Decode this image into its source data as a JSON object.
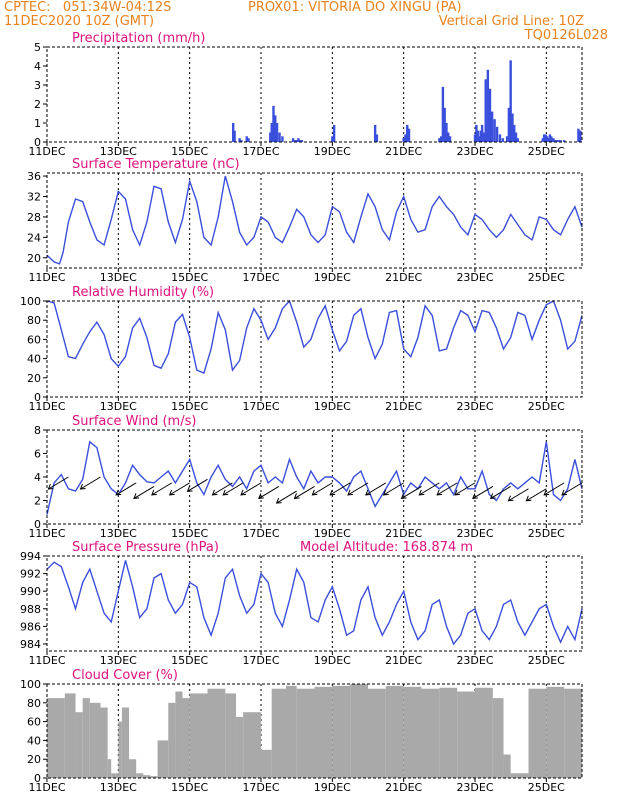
{
  "header": {
    "line1_left": "CPTEC:   051:34W-04:12S",
    "line1_mid": "PROX01: VITORIA DO XINGU (PA)",
    "line2_left": "11DEC2020 10Z (GMT)",
    "line2_right": "Vertical Grid Line: 10Z",
    "line3_right": "TQ0126L028"
  },
  "colors": {
    "header": "#e8821c",
    "title": "#e0107c",
    "line": "#3a4fdc",
    "cloud": "#a9a9a9",
    "wind": "#000000"
  },
  "x_ticks": [
    "11DEC",
    "13DEC",
    "15DEC",
    "17DEC",
    "19DEC",
    "21DEC",
    "23DEC",
    "25DEC"
  ],
  "x_tick_days": [
    0,
    2,
    4,
    6,
    8,
    10,
    12,
    14
  ],
  "x_range_days": [
    0,
    15.0
  ],
  "chart_data": [
    {
      "type": "bar",
      "title": "Precipitation (mm/h)",
      "ylim": [
        0,
        5
      ],
      "yticks": [
        0,
        1,
        2,
        3,
        4,
        5
      ],
      "x_days": [
        5.22,
        5.26,
        5.4,
        5.45,
        5.6,
        5.65,
        6.26,
        6.3,
        6.35,
        6.4,
        6.45,
        6.52,
        6.6,
        6.9,
        6.95,
        7.0,
        7.05,
        7.1,
        7.15,
        8.0,
        8.05,
        9.2,
        9.25,
        10.0,
        10.05,
        10.1,
        10.15,
        11.0,
        11.05,
        11.1,
        11.15,
        11.2,
        11.25,
        11.3,
        12.0,
        12.04,
        12.08,
        12.12,
        12.16,
        12.2,
        12.24,
        12.3,
        12.36,
        12.42,
        12.48,
        12.55,
        12.62,
        12.7,
        12.78,
        12.9,
        12.95,
        13.0,
        13.05,
        13.1,
        13.15,
        13.2,
        13.9,
        13.94,
        13.98,
        14.02,
        14.06,
        14.1,
        14.14,
        14.2,
        14.25,
        14.3,
        14.35,
        14.4,
        14.5,
        14.9,
        14.95
      ],
      "values": [
        1.0,
        0.6,
        0.2,
        0.1,
        0.3,
        0.2,
        0.5,
        1.0,
        1.9,
        1.4,
        1.0,
        0.5,
        0.3,
        0.2,
        0.1,
        0.1,
        0.2,
        0.1,
        0.1,
        0.3,
        0.9,
        0.9,
        0.4,
        0.2,
        0.4,
        0.9,
        0.7,
        0.2,
        0.3,
        2.9,
        1.8,
        1.0,
        0.5,
        0.3,
        0.4,
        0.9,
        0.6,
        0.3,
        0.6,
        0.9,
        0.5,
        3.3,
        3.8,
        2.8,
        1.6,
        1.2,
        0.8,
        0.4,
        0.2,
        0.3,
        1.8,
        4.3,
        1.5,
        0.9,
        0.5,
        0.2,
        0.2,
        0.4,
        0.4,
        0.3,
        0.2,
        0.4,
        0.3,
        0.2,
        0.1,
        0.1,
        0.1,
        0.1,
        0.1,
        0.7,
        0.6
      ]
    },
    {
      "type": "line",
      "title": "Surface Temperature (nC)",
      "ylim": [
        18,
        36.6
      ],
      "yticks": [
        20,
        24,
        28,
        32,
        36
      ],
      "x_days": [
        0.0,
        0.2,
        0.35,
        0.45,
        0.6,
        0.8,
        1.0,
        1.2,
        1.4,
        1.6,
        1.8,
        2.0,
        2.2,
        2.4,
        2.6,
        2.8,
        3.0,
        3.2,
        3.4,
        3.6,
        3.8,
        4.0,
        4.2,
        4.4,
        4.6,
        4.8,
        5.0,
        5.2,
        5.4,
        5.6,
        5.8,
        6.0,
        6.2,
        6.4,
        6.6,
        6.8,
        7.0,
        7.2,
        7.4,
        7.6,
        7.8,
        8.0,
        8.2,
        8.4,
        8.6,
        8.8,
        9.0,
        9.2,
        9.4,
        9.6,
        9.8,
        10.0,
        10.2,
        10.4,
        10.6,
        10.8,
        11.0,
        11.2,
        11.4,
        11.6,
        11.8,
        12.0,
        12.2,
        12.4,
        12.6,
        12.8,
        13.0,
        13.2,
        13.4,
        13.6,
        13.8,
        14.0,
        14.2,
        14.4,
        14.6,
        14.8,
        15.0
      ],
      "values": [
        20.5,
        19.2,
        18.8,
        21.0,
        27.0,
        31.5,
        31.0,
        27.0,
        23.5,
        22.5,
        27.5,
        33.0,
        31.5,
        25.5,
        22.5,
        27.0,
        34.0,
        33.5,
        27.0,
        23.0,
        27.5,
        35.0,
        31.0,
        24.0,
        22.5,
        28.0,
        36.0,
        31.0,
        25.0,
        22.5,
        24.0,
        28.0,
        27.0,
        24.0,
        23.0,
        26.0,
        29.5,
        28.0,
        24.5,
        23.0,
        24.5,
        30.0,
        29.0,
        25.0,
        23.0,
        28.0,
        32.5,
        30.0,
        25.5,
        23.5,
        29.0,
        32.0,
        27.5,
        25.0,
        25.5,
        30.0,
        32.0,
        30.0,
        28.5,
        26.0,
        24.5,
        28.5,
        27.5,
        25.5,
        24.0,
        25.5,
        28.5,
        26.5,
        24.5,
        23.5,
        28.0,
        27.5,
        25.5,
        24.5,
        27.5,
        30.0,
        26.0
      ]
    },
    {
      "type": "line",
      "title": "Relative Humidity (%)",
      "ylim": [
        0,
        100
      ],
      "yticks": [
        0,
        20,
        40,
        60,
        80,
        100
      ],
      "x_days": [
        0.0,
        0.2,
        0.4,
        0.6,
        0.8,
        1.0,
        1.2,
        1.4,
        1.6,
        1.8,
        2.0,
        2.2,
        2.4,
        2.6,
        2.8,
        3.0,
        3.2,
        3.4,
        3.6,
        3.8,
        4.0,
        4.2,
        4.4,
        4.6,
        4.8,
        5.0,
        5.2,
        5.4,
        5.6,
        5.8,
        6.0,
        6.2,
        6.4,
        6.6,
        6.8,
        7.0,
        7.2,
        7.4,
        7.6,
        7.8,
        8.0,
        8.2,
        8.4,
        8.6,
        8.8,
        9.0,
        9.2,
        9.4,
        9.6,
        9.8,
        10.0,
        10.2,
        10.4,
        10.6,
        10.8,
        11.0,
        11.2,
        11.4,
        11.6,
        11.8,
        12.0,
        12.2,
        12.4,
        12.6,
        12.8,
        13.0,
        13.2,
        13.4,
        13.6,
        13.8,
        14.0,
        14.2,
        14.4,
        14.6,
        14.8,
        15.0
      ],
      "values": [
        100,
        98,
        70,
        42,
        40,
        55,
        68,
        78,
        65,
        40,
        32,
        42,
        72,
        82,
        62,
        33,
        30,
        45,
        78,
        86,
        62,
        28,
        25,
        50,
        88,
        70,
        28,
        38,
        72,
        92,
        80,
        60,
        72,
        92,
        100,
        78,
        52,
        60,
        82,
        95,
        70,
        48,
        58,
        85,
        92,
        62,
        40,
        55,
        88,
        90,
        50,
        42,
        62,
        95,
        85,
        48,
        50,
        72,
        90,
        85,
        68,
        90,
        88,
        72,
        50,
        62,
        88,
        85,
        60,
        80,
        96,
        100,
        80,
        50,
        58,
        85
      ]
    },
    {
      "type": "line",
      "title": "Surface Wind (m/s)",
      "ylim": [
        0,
        8
      ],
      "yticks": [
        0,
        2,
        4,
        6,
        8
      ],
      "x_days": [
        0.0,
        0.2,
        0.4,
        0.6,
        0.8,
        1.0,
        1.2,
        1.4,
        1.6,
        1.8,
        2.0,
        2.2,
        2.4,
        2.6,
        2.8,
        3.0,
        3.2,
        3.4,
        3.6,
        3.8,
        4.0,
        4.2,
        4.4,
        4.6,
        4.8,
        5.0,
        5.2,
        5.4,
        5.6,
        5.8,
        6.0,
        6.2,
        6.4,
        6.6,
        6.8,
        7.0,
        7.2,
        7.4,
        7.6,
        7.8,
        8.0,
        8.2,
        8.4,
        8.6,
        8.8,
        9.0,
        9.2,
        9.4,
        9.6,
        9.8,
        10.0,
        10.2,
        10.4,
        10.6,
        10.8,
        11.0,
        11.2,
        11.4,
        11.6,
        11.8,
        12.0,
        12.2,
        12.4,
        12.6,
        12.8,
        13.0,
        13.2,
        13.4,
        13.6,
        13.8,
        14.0,
        14.2,
        14.4,
        14.6,
        14.8,
        15.0
      ],
      "values": [
        0.8,
        3.5,
        4.2,
        3.0,
        2.8,
        3.8,
        7.0,
        6.5,
        4.0,
        3.0,
        2.5,
        3.5,
        5.0,
        4.2,
        3.6,
        3.5,
        4.0,
        4.5,
        3.5,
        4.5,
        5.5,
        3.5,
        2.5,
        4.0,
        5.0,
        3.8,
        3.2,
        4.0,
        3.0,
        4.5,
        5.0,
        3.5,
        4.0,
        3.5,
        5.5,
        4.0,
        3.0,
        4.5,
        3.5,
        4.0,
        4.0,
        3.5,
        2.8,
        4.0,
        4.5,
        3.0,
        1.5,
        2.5,
        3.5,
        4.5,
        2.5,
        3.5,
        3.0,
        4.0,
        3.5,
        3.0,
        3.5,
        2.5,
        4.0,
        3.0,
        3.0,
        4.5,
        2.5,
        2.0,
        3.0,
        3.5,
        3.0,
        3.5,
        4.0,
        3.5,
        7.0,
        2.5,
        2.0,
        3.0,
        5.5,
        3.0
      ],
      "arrows_x_days": [
        0.6,
        1.5,
        2.5,
        3.0,
        3.5,
        4.0,
        4.5,
        5.2,
        5.5,
        6.0,
        6.5,
        7.0,
        7.5,
        8.0,
        8.5,
        9.0,
        9.5,
        10.0,
        10.5,
        11.0,
        11.5,
        12.0,
        12.5,
        13.0,
        13.5,
        14.0,
        14.5,
        15.0
      ],
      "arrows_speed": [
        4,
        4,
        3.5,
        3.2,
        3.5,
        3.5,
        3.8,
        3.5,
        3.5,
        3.5,
        3.2,
        2.8,
        3.2,
        3.5,
        3.5,
        3.5,
        3.5,
        3.5,
        3.2,
        3.5,
        3.5,
        3.5,
        3.2,
        3.2,
        3.0,
        3.0,
        3.5,
        3.5
      ]
    },
    {
      "type": "line",
      "title": "Surface Pressure (hPa)",
      "ylim": [
        983.2,
        994
      ],
      "yticks": [
        984,
        986,
        988,
        990,
        992,
        994
      ],
      "x_days": [
        0.0,
        0.2,
        0.4,
        0.6,
        0.8,
        1.0,
        1.2,
        1.4,
        1.6,
        1.8,
        2.0,
        2.2,
        2.4,
        2.6,
        2.8,
        3.0,
        3.2,
        3.4,
        3.6,
        3.8,
        4.0,
        4.2,
        4.4,
        4.6,
        4.8,
        5.0,
        5.2,
        5.4,
        5.6,
        5.8,
        6.0,
        6.2,
        6.4,
        6.6,
        6.8,
        7.0,
        7.2,
        7.4,
        7.6,
        7.8,
        8.0,
        8.2,
        8.4,
        8.6,
        8.8,
        9.0,
        9.2,
        9.4,
        9.6,
        9.8,
        10.0,
        10.2,
        10.4,
        10.6,
        10.8,
        11.0,
        11.2,
        11.4,
        11.6,
        11.8,
        12.0,
        12.2,
        12.4,
        12.6,
        12.8,
        13.0,
        13.2,
        13.4,
        13.6,
        13.8,
        14.0,
        14.2,
        14.4,
        14.6,
        14.8,
        15.0
      ],
      "values": [
        992.5,
        993.3,
        992.8,
        990.5,
        988.0,
        991.0,
        992.5,
        990.0,
        987.5,
        986.5,
        990.0,
        993.5,
        990.5,
        987.0,
        988.0,
        991.5,
        992.0,
        989.0,
        987.5,
        988.5,
        991.0,
        990.5,
        987.0,
        985.0,
        987.5,
        991.5,
        992.5,
        989.5,
        987.5,
        988.5,
        992.0,
        991.0,
        987.5,
        986.0,
        989.0,
        992.5,
        991.0,
        987.0,
        986.5,
        989.0,
        990.5,
        988.0,
        985.0,
        985.5,
        989.0,
        990.5,
        987.0,
        985.0,
        986.5,
        988.5,
        990.0,
        986.5,
        984.5,
        985.5,
        988.5,
        989.0,
        986.0,
        984.0,
        985.0,
        987.5,
        988.0,
        985.5,
        984.5,
        986.0,
        988.5,
        989.0,
        986.5,
        985.0,
        986.5,
        988.0,
        988.5,
        986.0,
        984.2,
        986.0,
        984.5,
        988.0
      ]
    },
    {
      "type": "bar",
      "title": "Cloud Cover (%)",
      "ylim": [
        0,
        100
      ],
      "yticks": [
        0,
        20,
        40,
        60,
        80,
        100
      ],
      "x_days": [
        0.0,
        0.5,
        0.8,
        1.0,
        1.2,
        1.5,
        1.7,
        1.8,
        2.0,
        2.1,
        2.3,
        2.5,
        2.7,
        2.9,
        3.1,
        3.4,
        3.6,
        3.8,
        4.0,
        4.5,
        5.0,
        5.3,
        5.5,
        6.0,
        6.3,
        6.7,
        7.0,
        7.5,
        8.0,
        8.5,
        9.0,
        9.5,
        10.0,
        10.5,
        11.0,
        11.5,
        12.0,
        12.5,
        12.8,
        13.0,
        13.5,
        14.0,
        14.5,
        15.0
      ],
      "values": [
        85,
        90,
        70,
        85,
        80,
        75,
        20,
        5,
        60,
        75,
        20,
        5,
        3,
        2,
        40,
        80,
        92,
        85,
        90,
        95,
        90,
        65,
        70,
        30,
        95,
        98,
        95,
        97,
        98,
        100,
        95,
        98,
        97,
        95,
        96,
        92,
        96,
        85,
        25,
        5,
        95,
        97,
        95,
        96
      ]
    }
  ],
  "panel_titles": [
    "Precipitation (mm/h)",
    "Surface Temperature (nC)",
    "Relative Humidity (%)",
    "Surface Wind (m/s)",
    "Surface Pressure (hPa)",
    "Cloud Cover (%)"
  ],
  "altitude_label": "Model Altitude: 168.874 m"
}
